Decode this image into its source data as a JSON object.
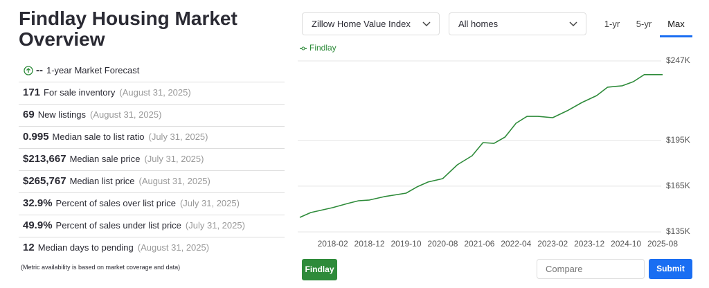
{
  "header": {
    "title": "Findlay Housing Market Overview"
  },
  "forecast": {
    "value": "--",
    "label": "1-year Market Forecast"
  },
  "metrics": [
    {
      "value": "171",
      "label": "For sale inventory",
      "date": "(August 31, 2025)"
    },
    {
      "value": "69",
      "label": "New listings",
      "date": "(August 31, 2025)"
    },
    {
      "value": "0.995",
      "label": "Median sale to list ratio",
      "date": "(July 31, 2025)"
    },
    {
      "value": "$213,667",
      "label": "Median sale price",
      "date": "(July 31, 2025)"
    },
    {
      "value": "$265,767",
      "label": "Median list price",
      "date": "(August 31, 2025)"
    },
    {
      "value": "32.9%",
      "label": "Percent of sales over list price",
      "date": "(July 31, 2025)"
    },
    {
      "value": "49.9%",
      "label": "Percent of sales under list price",
      "date": "(July 31, 2025)"
    },
    {
      "value": "12",
      "label": "Median days to pending",
      "date": "(August 31, 2025)"
    }
  ],
  "note": "(Metric availability is based on market coverage and data)",
  "controls": {
    "index_select": "Zillow Home Value Index",
    "home_select": "All homes",
    "ranges": [
      "1-yr",
      "5-yr",
      "Max"
    ],
    "active_range": "Max",
    "region_button": "Findlay",
    "compare_placeholder": "Compare",
    "submit": "Submit"
  },
  "chart_data": {
    "type": "line",
    "grid": true,
    "x": [
      "2017-05",
      "2017-08",
      "2018-02",
      "2018-06",
      "2018-09",
      "2018-12",
      "2019-04",
      "2019-10",
      "2020-01",
      "2020-04",
      "2020-08",
      "2020-12",
      "2021-04",
      "2021-07",
      "2021-10",
      "2022-01",
      "2022-04",
      "2022-07",
      "2022-10",
      "2023-02",
      "2023-06",
      "2023-10",
      "2024-02",
      "2024-05",
      "2024-09",
      "2024-12",
      "2025-03",
      "2025-08"
    ],
    "series": [
      {
        "name": "Findlay",
        "color": "#2e8b3a",
        "values": [
          144500,
          147700,
          150900,
          153600,
          155400,
          155900,
          158100,
          160400,
          164500,
          167700,
          169900,
          179000,
          184900,
          193500,
          193000,
          197100,
          206200,
          210700,
          210700,
          209800,
          214400,
          219800,
          224300,
          229800,
          230700,
          233400,
          238000,
          238000
        ]
      }
    ],
    "xticks": [
      "2018-02",
      "2018-12",
      "2019-10",
      "2020-08",
      "2021-06",
      "2022-04",
      "2023-02",
      "2023-12",
      "2024-10",
      "2025-08"
    ],
    "ylim": [
      135000,
      247000
    ],
    "yticks": [
      {
        "value": 135000,
        "label": "$135K"
      },
      {
        "value": 165000,
        "label": "$165K"
      },
      {
        "value": 195000,
        "label": "$195K"
      },
      {
        "value": 247000,
        "label": "$247K"
      }
    ]
  }
}
